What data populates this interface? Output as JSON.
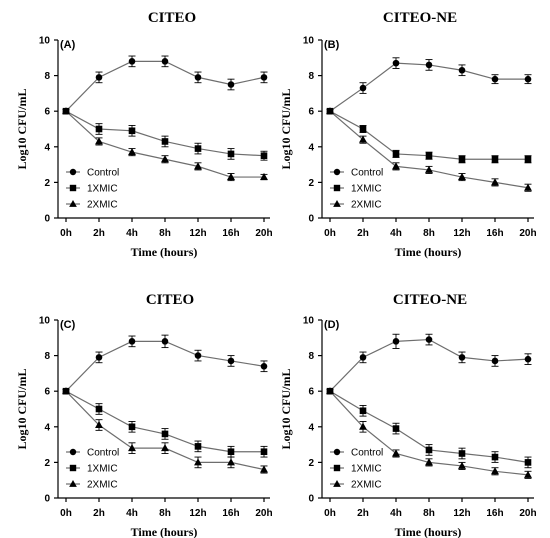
{
  "chart_data": [
    {
      "type": "line",
      "panel_label": "(A)",
      "title": "CITEO",
      "xlabel": "Time (hours)",
      "ylabel": "Log10 CFU/mL",
      "categories": [
        "0h",
        "2h",
        "4h",
        "8h",
        "12h",
        "16h",
        "20h"
      ],
      "ylim": [
        0,
        10
      ],
      "yticks": [
        0,
        2,
        4,
        6,
        8,
        10
      ],
      "legend_position": "bottom-left",
      "series": [
        {
          "name": "Control",
          "marker": "circle",
          "values": [
            6.0,
            7.9,
            8.8,
            8.8,
            7.9,
            7.5,
            7.9
          ],
          "errors": [
            0.1,
            0.3,
            0.3,
            0.3,
            0.3,
            0.3,
            0.3
          ]
        },
        {
          "name": "1XMIC",
          "marker": "square",
          "values": [
            6.0,
            5.0,
            4.9,
            4.3,
            3.9,
            3.6,
            3.5
          ],
          "errors": [
            0.1,
            0.3,
            0.3,
            0.3,
            0.3,
            0.3,
            0.25
          ]
        },
        {
          "name": "2XMIC",
          "marker": "triangle",
          "values": [
            6.0,
            4.3,
            3.7,
            3.3,
            2.9,
            2.3,
            2.3
          ],
          "errors": [
            0.1,
            0.2,
            0.2,
            0.2,
            0.2,
            0.2,
            0.15
          ]
        }
      ]
    },
    {
      "type": "line",
      "panel_label": "(B)",
      "title": "CITEO-NE",
      "xlabel": "Time (hours)",
      "ylabel": "Log10 CFU/mL",
      "categories": [
        "0h",
        "2h",
        "4h",
        "8h",
        "12h",
        "16h",
        "20h"
      ],
      "ylim": [
        0,
        10
      ],
      "yticks": [
        0,
        2,
        4,
        6,
        8,
        10
      ],
      "legend_position": "bottom-left",
      "series": [
        {
          "name": "Control",
          "marker": "circle",
          "values": [
            6.0,
            7.3,
            8.7,
            8.6,
            8.3,
            7.8,
            7.8
          ],
          "errors": [
            0.1,
            0.3,
            0.3,
            0.3,
            0.3,
            0.25,
            0.25
          ]
        },
        {
          "name": "1XMIC",
          "marker": "square",
          "values": [
            6.0,
            5.0,
            3.6,
            3.5,
            3.3,
            3.3,
            3.3
          ],
          "errors": [
            0.1,
            0.2,
            0.2,
            0.2,
            0.2,
            0.2,
            0.2
          ]
        },
        {
          "name": "2XMIC",
          "marker": "triangle",
          "values": [
            6.0,
            4.4,
            2.9,
            2.7,
            2.3,
            2.0,
            1.7
          ],
          "errors": [
            0.1,
            0.2,
            0.2,
            0.2,
            0.2,
            0.2,
            0.2
          ]
        }
      ]
    },
    {
      "type": "line",
      "panel_label": "(C)",
      "title": "CITEO",
      "xlabel": "Time (hours)",
      "ylabel": "Log10 CFU/mL",
      "categories": [
        "0h",
        "2h",
        "4h",
        "8h",
        "12h",
        "16h",
        "20h"
      ],
      "ylim": [
        0,
        10
      ],
      "yticks": [
        0,
        2,
        4,
        6,
        8,
        10
      ],
      "legend_position": "bottom-left",
      "series": [
        {
          "name": "Control",
          "marker": "circle",
          "values": [
            6.0,
            7.9,
            8.8,
            8.8,
            8.0,
            7.7,
            7.4
          ],
          "errors": [
            0.1,
            0.3,
            0.3,
            0.35,
            0.3,
            0.3,
            0.3
          ]
        },
        {
          "name": "1XMIC",
          "marker": "square",
          "values": [
            6.0,
            5.0,
            4.0,
            3.6,
            2.9,
            2.6,
            2.6
          ],
          "errors": [
            0.1,
            0.3,
            0.3,
            0.3,
            0.3,
            0.3,
            0.3
          ]
        },
        {
          "name": "2XMIC",
          "marker": "triangle",
          "values": [
            6.0,
            4.1,
            2.8,
            2.8,
            2.0,
            2.0,
            1.6
          ],
          "errors": [
            0.1,
            0.3,
            0.3,
            0.3,
            0.3,
            0.3,
            0.2
          ]
        }
      ]
    },
    {
      "type": "line",
      "panel_label": "(D)",
      "title": "CITEO-NE",
      "xlabel": "Time (hours)",
      "ylabel": "Log10 CFU/mL",
      "categories": [
        "0h",
        "2h",
        "4h",
        "8h",
        "12h",
        "16h",
        "20h"
      ],
      "ylim": [
        0,
        10
      ],
      "yticks": [
        0,
        2,
        4,
        6,
        8,
        10
      ],
      "legend_position": "bottom-left",
      "series": [
        {
          "name": "Control",
          "marker": "circle",
          "values": [
            6.0,
            7.9,
            8.8,
            8.9,
            7.9,
            7.7,
            7.8
          ],
          "errors": [
            0.1,
            0.3,
            0.4,
            0.3,
            0.3,
            0.3,
            0.3
          ]
        },
        {
          "name": "1XMIC",
          "marker": "square",
          "values": [
            6.0,
            4.9,
            3.9,
            2.7,
            2.5,
            2.3,
            2.0
          ],
          "errors": [
            0.1,
            0.3,
            0.3,
            0.3,
            0.3,
            0.3,
            0.3
          ]
        },
        {
          "name": "2XMIC",
          "marker": "triangle",
          "values": [
            6.0,
            4.0,
            2.5,
            2.0,
            1.8,
            1.5,
            1.3
          ],
          "errors": [
            0.1,
            0.3,
            0.2,
            0.2,
            0.2,
            0.2,
            0.2
          ]
        }
      ]
    }
  ]
}
